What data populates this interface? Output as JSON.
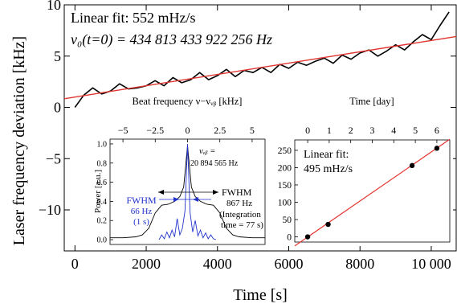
{
  "chart_data": [
    {
      "id": "main",
      "type": "line",
      "xlabel": "Time [s]",
      "ylabel": "Laser frequency deviation [kHz]",
      "xlim": [
        -300,
        10700
      ],
      "ylim": [
        -14,
        10
      ],
      "xticks": [
        0,
        2000,
        4000,
        6000,
        8000,
        10000
      ],
      "xtick_labels": [
        "0",
        "2000",
        "4000",
        "6000",
        "8000",
        "10 000"
      ],
      "yticks": [
        -10,
        -5,
        0,
        5,
        10
      ],
      "ytick_labels": [
        "−10",
        "−5",
        "0",
        "5",
        "10"
      ],
      "annotations": [
        "Linear fit: 552 mHz/s",
        "ν₀(t=0) =   434 813 433 922 256 Hz"
      ],
      "series": [
        {
          "role": "measured data",
          "color": "#000000",
          "x": [
            0,
            250,
            500,
            750,
            1000,
            1250,
            1500,
            1750,
            2000,
            2250,
            2500,
            2750,
            3000,
            3250,
            3500,
            3750,
            4000,
            4250,
            4500,
            4750,
            5000,
            5250,
            5500,
            5750,
            6000,
            6250,
            6500,
            6750,
            7000,
            7250,
            7500,
            7750,
            8000,
            8250,
            8500,
            8750,
            9000,
            9250,
            9500,
            9750,
            10000,
            10250,
            10500
          ],
          "y": [
            0.0,
            1.2,
            1.9,
            1.3,
            1.6,
            2.3,
            1.8,
            1.9,
            2.1,
            2.6,
            2.1,
            2.9,
            2.4,
            2.7,
            3.4,
            2.7,
            3.1,
            3.7,
            3.0,
            3.6,
            3.4,
            3.9,
            3.4,
            4.2,
            3.8,
            4.4,
            4.1,
            4.5,
            4.8,
            4.3,
            5.1,
            4.7,
            5.3,
            5.6,
            5.0,
            5.5,
            6.1,
            5.6,
            6.4,
            7.1,
            6.6,
            8.0,
            9.3
          ]
        },
        {
          "role": "linear fit",
          "color": "#e3342f",
          "x": [
            -300,
            10700
          ],
          "y": [
            0.84,
            6.91
          ]
        }
      ]
    },
    {
      "id": "inset-beat",
      "type": "line",
      "xlabel": "Beat frequency ν−νᵥᵦ [kHz]",
      "ylabel": "Power [a.u.]",
      "xlim": [
        -6,
        6
      ],
      "ylim": [
        -0.05,
        1.05
      ],
      "xticks": [
        -5,
        -2.5,
        0,
        2.5,
        5
      ],
      "xtick_labels": [
        "−5",
        "−2.5",
        "0",
        "2.5",
        "5"
      ],
      "yticks": [
        0,
        0.2,
        0.4,
        0.6,
        0.8,
        1.0
      ],
      "ytick_labels": [
        "0.0",
        "0.2",
        "0.4",
        "0.6",
        "0.8",
        "1.0"
      ],
      "annotations": [
        "νᵥᵦ =",
        "20 894 565 Hz",
        "FWHM",
        "867 Hz",
        "(Integration",
        "time = 77 s)",
        "FWHM",
        "66 Hz",
        "(1 s)"
      ],
      "series": [
        {
          "role": "77 s spectrum",
          "color": "#000000",
          "x": [
            -6,
            -5,
            -4,
            -3.5,
            -3,
            -2.5,
            -2,
            -1.5,
            -1,
            -0.6,
            -0.3,
            0,
            0.3,
            0.6,
            1,
            1.5,
            2,
            2.5,
            3,
            3.5,
            4,
            5,
            6
          ],
          "y": [
            0.02,
            0.02,
            0.03,
            0.05,
            0.12,
            0.28,
            0.36,
            0.37,
            0.4,
            0.45,
            0.55,
            0.98,
            0.55,
            0.45,
            0.4,
            0.37,
            0.36,
            0.28,
            0.12,
            0.05,
            0.03,
            0.02,
            0.02
          ]
        },
        {
          "role": "1 s spectrum",
          "color": "#2233cc",
          "x": [
            -2.2,
            -2.0,
            -1.8,
            -1.6,
            -1.4,
            -1.2,
            -1.0,
            -0.8,
            -0.6,
            -0.4,
            -0.2,
            0,
            0.2,
            0.4,
            0.6,
            0.8,
            1.0,
            1.2,
            1.4,
            1.6,
            1.8,
            2.0,
            2.2
          ],
          "y": [
            0.0,
            0.05,
            0.01,
            0.08,
            0.02,
            0.1,
            0.03,
            0.22,
            0.05,
            0.12,
            0.3,
            1.0,
            0.28,
            0.08,
            0.2,
            0.04,
            0.1,
            0.02,
            0.07,
            0.01,
            0.05,
            0.01,
            0.0
          ]
        }
      ]
    },
    {
      "id": "inset-days",
      "type": "scatter",
      "xlabel": "Time [day]",
      "xlim": [
        -0.6,
        6.6
      ],
      "ylim": [
        -15,
        280
      ],
      "xticks": [
        0,
        1,
        2,
        3,
        4,
        5,
        6
      ],
      "xtick_labels": [
        "0",
        "1",
        "2",
        "3",
        "4",
        "5",
        "6"
      ],
      "yticks": [
        0,
        50,
        100,
        150,
        200,
        250
      ],
      "ytick_labels": [
        "0",
        "50",
        "100",
        "150",
        "200",
        "250"
      ],
      "annotations": [
        "Linear fit:",
        "495 mHz/s"
      ],
      "series": [
        {
          "role": "daily points",
          "color": "#000000",
          "x": [
            0.0,
            0.95,
            4.85,
            6.0
          ],
          "y": [
            0,
            36,
            206,
            256
          ]
        },
        {
          "role": "linear fit",
          "color": "#e3342f",
          "x": [
            -0.6,
            6.6
          ],
          "y": [
            -26,
            282
          ]
        }
      ]
    }
  ]
}
